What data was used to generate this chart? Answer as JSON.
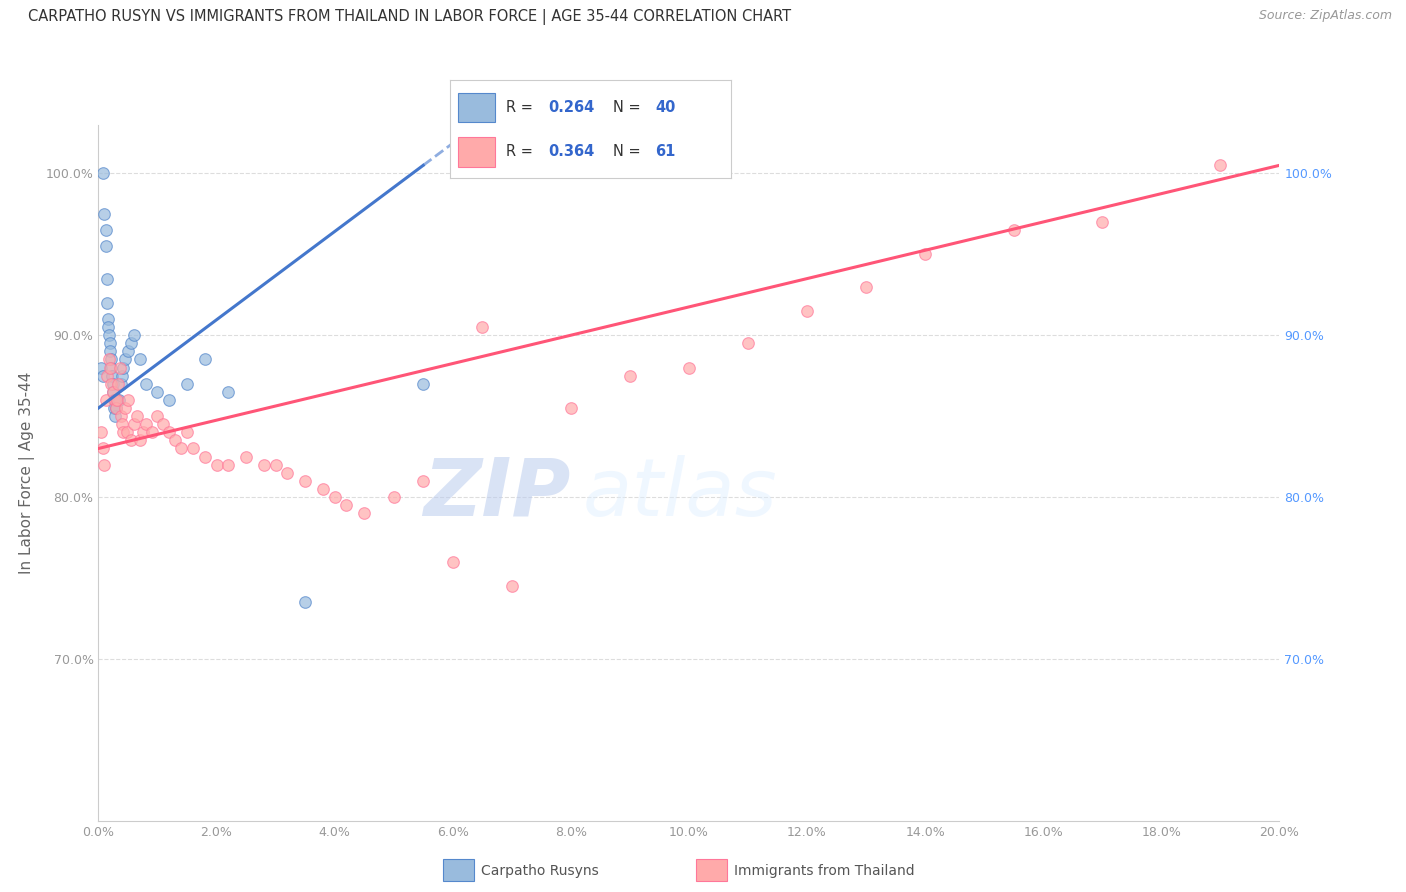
{
  "title": "CARPATHO RUSYN VS IMMIGRANTS FROM THAILAND IN LABOR FORCE | AGE 35-44 CORRELATION CHART",
  "source": "Source: ZipAtlas.com",
  "ylabel": "In Labor Force | Age 35-44",
  "xlim": [
    0.0,
    20.0
  ],
  "ylim": [
    60.0,
    103.0
  ],
  "xticks": [
    0.0,
    2.0,
    4.0,
    6.0,
    8.0,
    10.0,
    12.0,
    14.0,
    16.0,
    18.0,
    20.0
  ],
  "yticks": [
    70.0,
    80.0,
    90.0,
    100.0
  ],
  "blue_r": "0.264",
  "blue_n": "40",
  "pink_r": "0.364",
  "pink_n": "61",
  "blue_color": "#99BBDD",
  "pink_color": "#FFAAAA",
  "blue_edge_color": "#5588CC",
  "pink_edge_color": "#FF7799",
  "blue_line_color": "#4477CC",
  "pink_line_color": "#FF5577",
  "legend_label_blue": "Carpatho Rusyns",
  "legend_label_pink": "Immigrants from Thailand",
  "watermark_zip": "ZIP",
  "watermark_atlas": "atlas",
  "blue_line_x0": 0.0,
  "blue_line_y0": 85.5,
  "blue_line_x1": 5.5,
  "blue_line_y1": 100.5,
  "pink_line_x0": 0.0,
  "pink_line_y0": 83.0,
  "pink_line_x1": 20.0,
  "pink_line_y1": 100.5,
  "blue_scatter_x": [
    0.05,
    0.07,
    0.08,
    0.1,
    0.12,
    0.13,
    0.14,
    0.15,
    0.16,
    0.17,
    0.18,
    0.19,
    0.2,
    0.21,
    0.22,
    0.23,
    0.24,
    0.25,
    0.26,
    0.27,
    0.28,
    0.3,
    0.32,
    0.35,
    0.38,
    0.4,
    0.42,
    0.45,
    0.5,
    0.55,
    0.6,
    0.7,
    0.8,
    1.0,
    1.2,
    1.5,
    1.8,
    2.2,
    3.5,
    5.5
  ],
  "blue_scatter_y": [
    88.0,
    87.5,
    100.0,
    97.5,
    96.5,
    95.5,
    93.5,
    92.0,
    91.0,
    90.5,
    90.0,
    89.5,
    89.0,
    88.5,
    88.0,
    87.5,
    87.0,
    86.5,
    86.0,
    85.5,
    85.0,
    85.5,
    86.0,
    86.0,
    87.0,
    87.5,
    88.0,
    88.5,
    89.0,
    89.5,
    90.0,
    88.5,
    87.0,
    86.5,
    86.0,
    87.0,
    88.5,
    86.5,
    73.5,
    87.0
  ],
  "pink_scatter_x": [
    0.05,
    0.08,
    0.1,
    0.12,
    0.15,
    0.18,
    0.2,
    0.22,
    0.25,
    0.28,
    0.3,
    0.32,
    0.34,
    0.36,
    0.38,
    0.4,
    0.42,
    0.45,
    0.48,
    0.5,
    0.55,
    0.6,
    0.65,
    0.7,
    0.75,
    0.8,
    0.9,
    1.0,
    1.1,
    1.2,
    1.3,
    1.4,
    1.5,
    1.6,
    1.8,
    2.0,
    2.2,
    2.5,
    2.8,
    3.0,
    3.2,
    3.5,
    3.8,
    4.0,
    4.2,
    4.5,
    5.0,
    5.5,
    6.0,
    6.5,
    7.0,
    8.0,
    9.0,
    10.0,
    11.0,
    12.0,
    13.0,
    14.0,
    15.5,
    17.0,
    19.0
  ],
  "pink_scatter_y": [
    84.0,
    83.0,
    82.0,
    86.0,
    87.5,
    88.5,
    88.0,
    87.0,
    86.5,
    86.0,
    85.5,
    86.0,
    87.0,
    88.0,
    85.0,
    84.5,
    84.0,
    85.5,
    84.0,
    86.0,
    83.5,
    84.5,
    85.0,
    83.5,
    84.0,
    84.5,
    84.0,
    85.0,
    84.5,
    84.0,
    83.5,
    83.0,
    84.0,
    83.0,
    82.5,
    82.0,
    82.0,
    82.5,
    82.0,
    82.0,
    81.5,
    81.0,
    80.5,
    80.0,
    79.5,
    79.0,
    80.0,
    81.0,
    76.0,
    90.5,
    74.5,
    85.5,
    87.5,
    88.0,
    89.5,
    91.5,
    93.0,
    95.0,
    96.5,
    97.0,
    100.5
  ],
  "background_color": "#ffffff",
  "grid_color": "#dddddd"
}
